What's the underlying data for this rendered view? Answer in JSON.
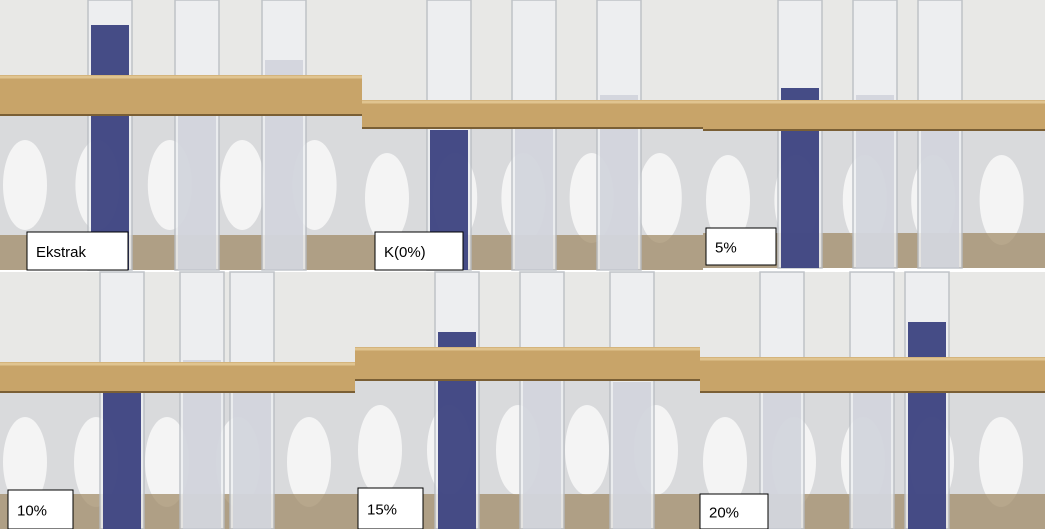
{
  "panels": [
    {
      "label": "Ekstrak"
    },
    {
      "label": "K(0%)"
    },
    {
      "label": "5%"
    },
    {
      "label": "10%"
    },
    {
      "label": "15%"
    },
    {
      "label": "20%"
    }
  ]
}
